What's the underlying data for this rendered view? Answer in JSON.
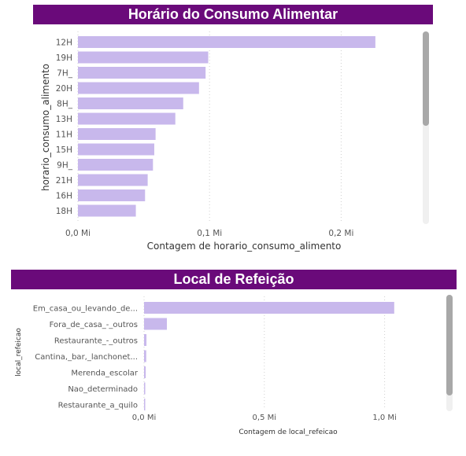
{
  "colors": {
    "banner": "#6a0a7a",
    "bar": "#c8b8ec",
    "grid": "#d0d0d0"
  },
  "chart_data": [
    {
      "type": "bar",
      "orientation": "horizontal",
      "title": "Horário do Consumo Alimentar",
      "xlabel": "Contagem de horario_consumo_alimento",
      "ylabel": "horario_consumo_alimento",
      "categories": [
        "12H",
        "19H",
        "7H_",
        "20H",
        "8H_",
        "13H",
        "11H",
        "15H",
        "9H_",
        "21H",
        "16H",
        "18H"
      ],
      "values": [
        0.226,
        0.099,
        0.097,
        0.092,
        0.08,
        0.074,
        0.059,
        0.058,
        0.057,
        0.053,
        0.051,
        0.044
      ],
      "xlim": [
        0,
        0.25
      ],
      "xticks": [
        0,
        0.1,
        0.2
      ],
      "xtick_labels": [
        "0,0 Mi",
        "0,1 Mi",
        "0,2 Mi"
      ],
      "grid": true
    },
    {
      "type": "bar",
      "orientation": "horizontal",
      "title": "Local de Refeição",
      "xlabel": "Contagem de local_refeicao",
      "ylabel": "local_refeicao",
      "categories": [
        "Em_casa_ou_levando_de...",
        "Fora_de_casa_-_outros",
        "Restaurante_-_outros",
        "Cantina,_bar,_lanchonet...",
        "Merenda_escolar",
        "Nao_determinado",
        "Restaurante_a_quilo"
      ],
      "values": [
        1.04,
        0.095,
        0.01,
        0.009,
        0.007,
        0.005,
        0.003
      ],
      "xlim": [
        0,
        1.25
      ],
      "xticks": [
        0,
        0.5,
        1.0
      ],
      "xtick_labels": [
        "0,0 Mi",
        "0,5 Mi",
        "1,0 Mi"
      ],
      "grid": true
    }
  ]
}
